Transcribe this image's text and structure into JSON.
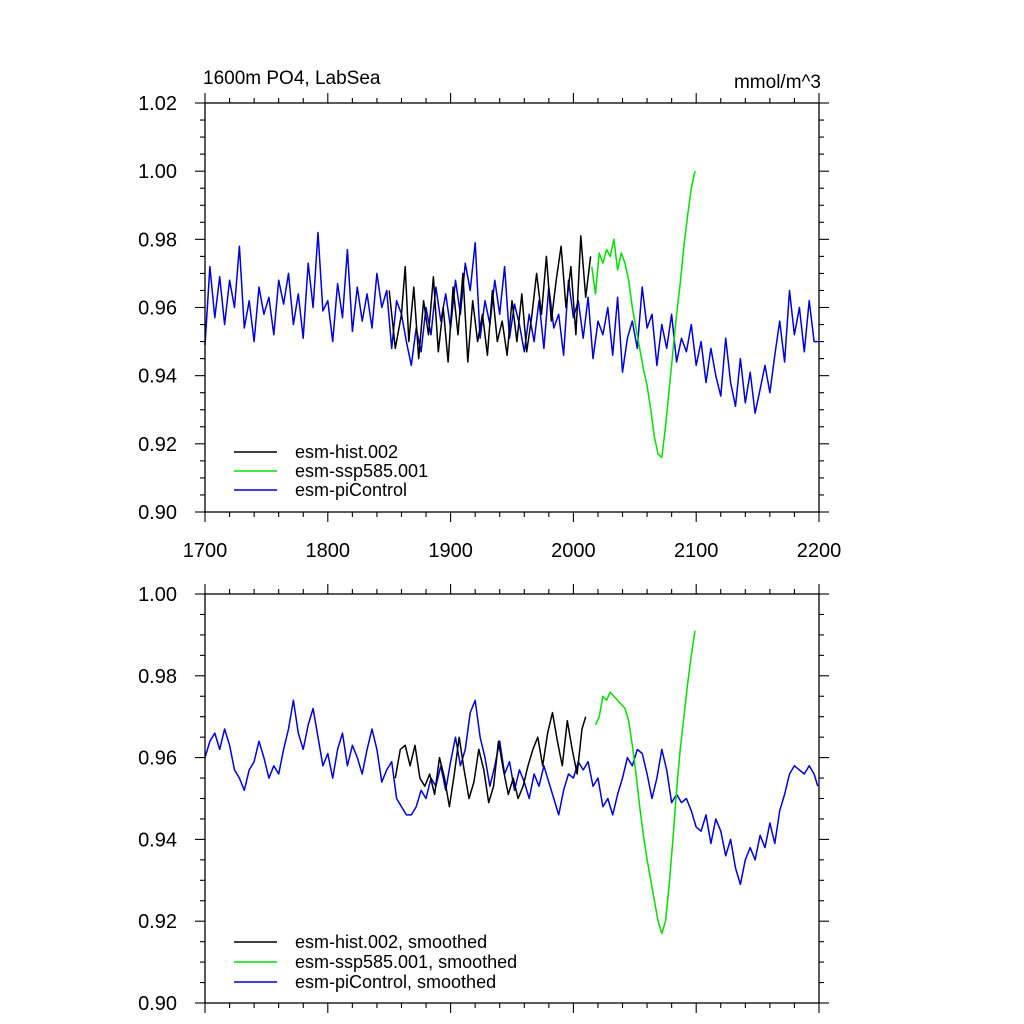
{
  "colors": {
    "hist": "#000000",
    "ssp": "#00e000",
    "pic": "#0000dd"
  },
  "chart_data": [
    {
      "type": "line",
      "title_left": "1600m PO4, LabSea",
      "title_right": "mmol/m^3",
      "xlim": [
        1700,
        2200
      ],
      "ylim": [
        0.9,
        1.02
      ],
      "xticks": [
        1700,
        1800,
        1900,
        2000,
        2100,
        2200
      ],
      "xtick_labels": [
        "1700",
        "1800",
        "1900",
        "2000",
        "2100",
        "2200"
      ],
      "yticks": [
        0.9,
        0.92,
        0.94,
        0.96,
        0.98,
        1.0,
        1.02
      ],
      "ytick_labels": [
        "0.90",
        "0.92",
        "0.94",
        "0.96",
        "0.98",
        "1.00",
        "1.02"
      ],
      "legend": [
        "esm-hist.002",
        "esm-ssp585.001",
        "esm-piControl"
      ],
      "series": [
        {
          "name": "esm-hist.002",
          "color_key": "hist",
          "x": [
            1850,
            1855,
            1860,
            1863,
            1866,
            1870,
            1874,
            1878,
            1882,
            1886,
            1890,
            1894,
            1898,
            1902,
            1906,
            1910,
            1914,
            1918,
            1922,
            1926,
            1930,
            1934,
            1938,
            1942,
            1946,
            1950,
            1954,
            1958,
            1962,
            1966,
            1970,
            1974,
            1978,
            1982,
            1986,
            1990,
            1994,
            1998,
            2002,
            2006,
            2010,
            2014
          ],
          "values": [
            0.965,
            0.948,
            0.958,
            0.972,
            0.95,
            0.966,
            0.945,
            0.962,
            0.952,
            0.969,
            0.947,
            0.96,
            0.944,
            0.966,
            0.952,
            0.97,
            0.944,
            0.962,
            0.95,
            0.958,
            0.946,
            0.965,
            0.95,
            0.956,
            0.946,
            0.962,
            0.95,
            0.964,
            0.947,
            0.957,
            0.97,
            0.958,
            0.975,
            0.956,
            0.968,
            0.978,
            0.96,
            0.972,
            0.952,
            0.981,
            0.963,
            0.975
          ]
        },
        {
          "name": "esm-ssp585.001",
          "color_key": "ssp",
          "x": [
            2015,
            2018,
            2021,
            2024,
            2027,
            2030,
            2033,
            2036,
            2039,
            2042,
            2045,
            2048,
            2051,
            2054,
            2057,
            2060,
            2063,
            2066,
            2069,
            2072,
            2075,
            2078,
            2081,
            2084,
            2087,
            2090,
            2093,
            2096,
            2099
          ],
          "values": [
            0.972,
            0.964,
            0.976,
            0.973,
            0.977,
            0.975,
            0.98,
            0.971,
            0.976,
            0.973,
            0.968,
            0.96,
            0.954,
            0.948,
            0.942,
            0.937,
            0.93,
            0.922,
            0.917,
            0.916,
            0.925,
            0.936,
            0.947,
            0.958,
            0.967,
            0.978,
            0.987,
            0.995,
            1.0
          ]
        },
        {
          "name": "esm-piControl",
          "color_key": "pic",
          "x": [
            1700,
            1704,
            1708,
            1712,
            1716,
            1720,
            1724,
            1728,
            1732,
            1736,
            1740,
            1744,
            1748,
            1752,
            1756,
            1760,
            1764,
            1768,
            1772,
            1776,
            1780,
            1784,
            1788,
            1792,
            1796,
            1800,
            1804,
            1808,
            1812,
            1816,
            1820,
            1824,
            1828,
            1832,
            1836,
            1840,
            1844,
            1848,
            1852,
            1856,
            1860,
            1864,
            1868,
            1872,
            1876,
            1880,
            1884,
            1888,
            1892,
            1896,
            1900,
            1904,
            1908,
            1912,
            1916,
            1920,
            1924,
            1928,
            1932,
            1936,
            1940,
            1944,
            1948,
            1952,
            1956,
            1960,
            1964,
            1968,
            1972,
            1976,
            1980,
            1984,
            1988,
            1992,
            1996,
            2000,
            2004,
            2008,
            2012,
            2016,
            2020,
            2024,
            2028,
            2032,
            2036,
            2040,
            2044,
            2048,
            2052,
            2056,
            2060,
            2064,
            2068,
            2072,
            2076,
            2080,
            2084,
            2088,
            2092,
            2096,
            2100,
            2104,
            2108,
            2112,
            2116,
            2120,
            2124,
            2128,
            2132,
            2136,
            2140,
            2144,
            2148,
            2152,
            2156,
            2160,
            2164,
            2168,
            2172,
            2176,
            2180,
            2184,
            2188,
            2192,
            2196,
            2200
          ],
          "values": [
            0.949,
            0.972,
            0.957,
            0.969,
            0.955,
            0.968,
            0.96,
            0.978,
            0.954,
            0.962,
            0.95,
            0.966,
            0.958,
            0.963,
            0.952,
            0.968,
            0.961,
            0.97,
            0.955,
            0.964,
            0.951,
            0.973,
            0.96,
            0.982,
            0.959,
            0.962,
            0.95,
            0.967,
            0.957,
            0.977,
            0.953,
            0.966,
            0.956,
            0.964,
            0.954,
            0.97,
            0.96,
            0.965,
            0.948,
            0.962,
            0.958,
            0.95,
            0.943,
            0.954,
            0.947,
            0.96,
            0.952,
            0.966,
            0.956,
            0.964,
            0.954,
            0.968,
            0.958,
            0.973,
            0.965,
            0.979,
            0.951,
            0.962,
            0.955,
            0.968,
            0.958,
            0.972,
            0.951,
            0.961,
            0.955,
            0.947,
            0.958,
            0.95,
            0.962,
            0.948,
            0.966,
            0.954,
            0.958,
            0.946,
            0.968,
            0.957,
            0.962,
            0.951,
            0.963,
            0.945,
            0.956,
            0.952,
            0.96,
            0.946,
            0.963,
            0.941,
            0.951,
            0.956,
            0.948,
            0.966,
            0.954,
            0.958,
            0.943,
            0.955,
            0.948,
            0.958,
            0.944,
            0.951,
            0.947,
            0.955,
            0.943,
            0.95,
            0.938,
            0.948,
            0.94,
            0.934,
            0.951,
            0.938,
            0.931,
            0.945,
            0.932,
            0.941,
            0.929,
            0.936,
            0.943,
            0.935,
            0.946,
            0.956,
            0.944,
            0.965,
            0.952,
            0.96,
            0.947,
            0.962,
            0.95,
            0.95
          ]
        }
      ]
    },
    {
      "type": "line",
      "xlim": [
        1700,
        2200
      ],
      "ylim": [
        0.9,
        1.0
      ],
      "xticks": [
        1700,
        1800,
        1900,
        2000,
        2100,
        2200
      ],
      "yticks": [
        0.9,
        0.92,
        0.94,
        0.96,
        0.98,
        1.0
      ],
      "ytick_labels": [
        "0.90",
        "0.92",
        "0.94",
        "0.96",
        "0.98",
        "1.00"
      ],
      "legend": [
        "esm-hist.002, smoothed",
        "esm-ssp585.001, smoothed",
        "esm-piControl, smoothed"
      ],
      "series": [
        {
          "name": "esm-hist.002, smoothed",
          "color_key": "hist",
          "x": [
            1855,
            1859,
            1863,
            1867,
            1871,
            1875,
            1879,
            1883,
            1887,
            1891,
            1895,
            1899,
            1903,
            1907,
            1911,
            1915,
            1919,
            1923,
            1927,
            1931,
            1935,
            1939,
            1943,
            1947,
            1951,
            1955,
            1959,
            1963,
            1967,
            1971,
            1975,
            1979,
            1983,
            1987,
            1991,
            1995,
            1999,
            2003,
            2007,
            2010
          ],
          "values": [
            0.955,
            0.962,
            0.963,
            0.958,
            0.963,
            0.955,
            0.953,
            0.956,
            0.951,
            0.96,
            0.955,
            0.948,
            0.956,
            0.965,
            0.957,
            0.95,
            0.954,
            0.962,
            0.957,
            0.949,
            0.953,
            0.964,
            0.957,
            0.951,
            0.955,
            0.95,
            0.953,
            0.958,
            0.962,
            0.965,
            0.958,
            0.966,
            0.971,
            0.964,
            0.958,
            0.969,
            0.962,
            0.956,
            0.967,
            0.97
          ]
        },
        {
          "name": "esm-ssp585.001, smoothed",
          "color_key": "ssp",
          "x": [
            2018,
            2021,
            2024,
            2027,
            2030,
            2033,
            2036,
            2039,
            2042,
            2045,
            2048,
            2051,
            2054,
            2057,
            2060,
            2063,
            2066,
            2069,
            2072,
            2075,
            2078,
            2081,
            2084,
            2087,
            2090,
            2093,
            2096,
            2099
          ],
          "values": [
            0.968,
            0.97,
            0.975,
            0.974,
            0.976,
            0.975,
            0.974,
            0.973,
            0.972,
            0.969,
            0.963,
            0.956,
            0.948,
            0.941,
            0.935,
            0.93,
            0.925,
            0.92,
            0.917,
            0.92,
            0.929,
            0.94,
            0.952,
            0.962,
            0.97,
            0.978,
            0.985,
            0.991
          ]
        },
        {
          "name": "esm-piControl, smoothed",
          "color_key": "pic",
          "x": [
            1700,
            1704,
            1708,
            1712,
            1716,
            1720,
            1724,
            1728,
            1732,
            1736,
            1740,
            1744,
            1748,
            1752,
            1756,
            1760,
            1764,
            1768,
            1772,
            1776,
            1780,
            1784,
            1788,
            1792,
            1796,
            1800,
            1804,
            1808,
            1812,
            1816,
            1820,
            1824,
            1828,
            1832,
            1836,
            1840,
            1844,
            1848,
            1852,
            1856,
            1860,
            1864,
            1868,
            1872,
            1876,
            1880,
            1884,
            1888,
            1892,
            1896,
            1900,
            1904,
            1908,
            1912,
            1916,
            1920,
            1924,
            1928,
            1932,
            1936,
            1940,
            1944,
            1948,
            1952,
            1956,
            1960,
            1964,
            1968,
            1972,
            1976,
            1980,
            1984,
            1988,
            1992,
            1996,
            2000,
            2004,
            2008,
            2012,
            2016,
            2020,
            2024,
            2028,
            2032,
            2036,
            2040,
            2044,
            2048,
            2052,
            2056,
            2060,
            2064,
            2068,
            2072,
            2076,
            2080,
            2084,
            2088,
            2092,
            2096,
            2100,
            2104,
            2108,
            2112,
            2116,
            2120,
            2124,
            2128,
            2132,
            2136,
            2140,
            2144,
            2148,
            2152,
            2156,
            2160,
            2164,
            2168,
            2172,
            2176,
            2180,
            2184,
            2188,
            2192,
            2196,
            2199
          ],
          "values": [
            0.96,
            0.964,
            0.966,
            0.962,
            0.967,
            0.963,
            0.957,
            0.955,
            0.952,
            0.957,
            0.959,
            0.964,
            0.96,
            0.955,
            0.958,
            0.956,
            0.962,
            0.967,
            0.974,
            0.966,
            0.962,
            0.968,
            0.972,
            0.965,
            0.958,
            0.961,
            0.955,
            0.962,
            0.966,
            0.958,
            0.963,
            0.96,
            0.956,
            0.962,
            0.967,
            0.962,
            0.954,
            0.957,
            0.959,
            0.95,
            0.948,
            0.946,
            0.946,
            0.948,
            0.952,
            0.95,
            0.955,
            0.953,
            0.958,
            0.952,
            0.959,
            0.965,
            0.958,
            0.962,
            0.971,
            0.974,
            0.965,
            0.96,
            0.953,
            0.958,
            0.964,
            0.956,
            0.959,
            0.952,
            0.957,
            0.954,
            0.95,
            0.956,
            0.953,
            0.958,
            0.954,
            0.95,
            0.946,
            0.952,
            0.956,
            0.955,
            0.959,
            0.957,
            0.959,
            0.953,
            0.955,
            0.948,
            0.95,
            0.946,
            0.951,
            0.955,
            0.96,
            0.958,
            0.962,
            0.961,
            0.956,
            0.95,
            0.955,
            0.962,
            0.957,
            0.949,
            0.951,
            0.949,
            0.95,
            0.947,
            0.943,
            0.942,
            0.946,
            0.939,
            0.945,
            0.942,
            0.936,
            0.94,
            0.933,
            0.929,
            0.935,
            0.938,
            0.935,
            0.941,
            0.938,
            0.944,
            0.939,
            0.947,
            0.951,
            0.956,
            0.958,
            0.957,
            0.956,
            0.958,
            0.956,
            0.953
          ]
        }
      ]
    }
  ]
}
